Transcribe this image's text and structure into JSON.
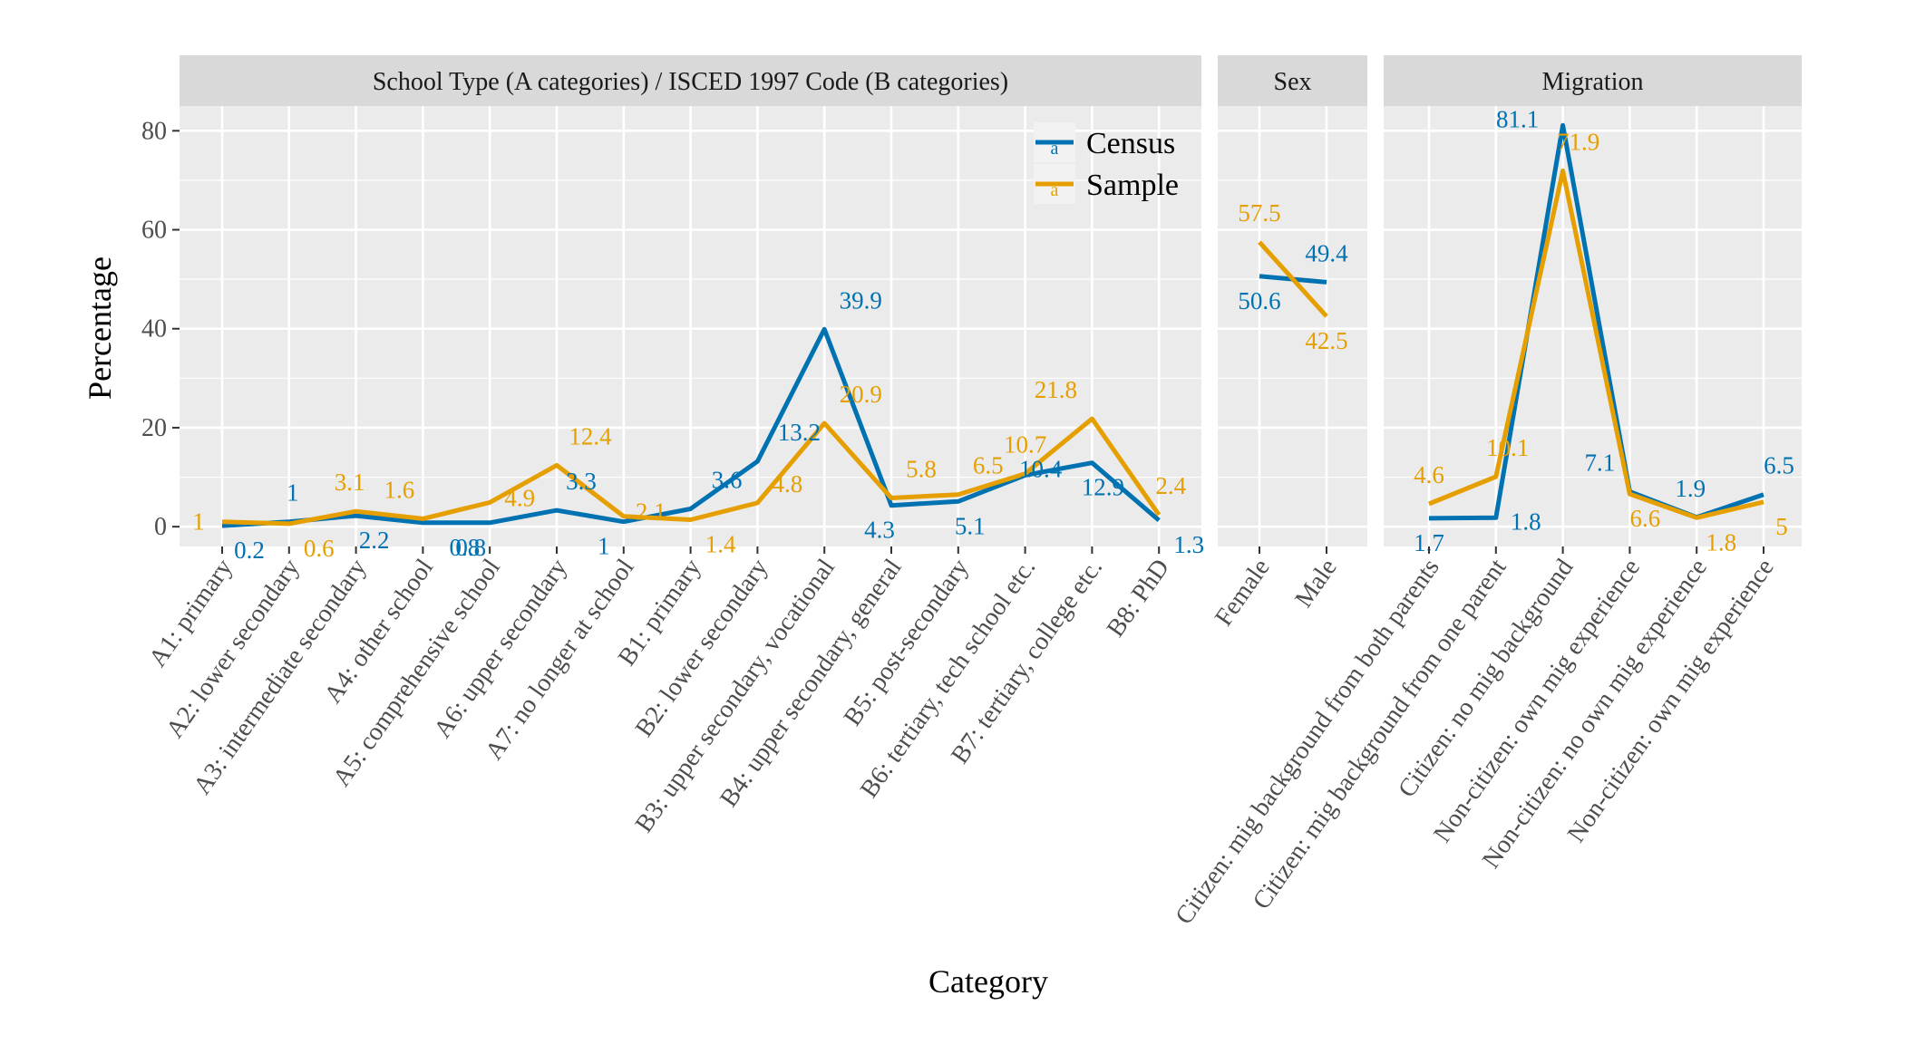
{
  "chart_data": {
    "type": "line",
    "xlabel": "Category",
    "ylabel": "Percentage",
    "ylim": [
      -4,
      85
    ],
    "yticks": [
      0,
      20,
      40,
      60,
      80
    ],
    "grid": true,
    "legend_position": "top-right",
    "colors": {
      "Census": "#0072B2",
      "Sample": "#E69F00"
    },
    "legend": [
      {
        "series": "Census",
        "label": "Census",
        "key_glyph": "a"
      },
      {
        "series": "Sample",
        "label": "Sample",
        "key_glyph": "a"
      }
    ],
    "panels": [
      {
        "id": "school",
        "strip": "School Type (A categories) / ISCED 1997 Code (B categories)",
        "categories": [
          "A1: primary",
          "A2: lower secondary",
          "A3: intermediate secondary",
          "A4: other school",
          "A5: comprehensive school",
          "A6: upper secondary",
          "A7: no longer at school",
          "B1: primary",
          "B2: lower secondary",
          "B3: upper secondary, vocational",
          "B4: upper secondary, general",
          "B5: post-secondary",
          "B6: tertiary, tech school etc.",
          "B7: tertiary, college etc.",
          "B8: PhD"
        ],
        "series": [
          {
            "name": "Census",
            "values": [
              0.2,
              1,
              2.2,
              0.8,
              0.8,
              3.3,
              1,
              3.6,
              13.2,
              39.9,
              4.3,
              5.1,
              10.4,
              12.9,
              1.3
            ]
          },
          {
            "name": "Sample",
            "values": [
              1,
              0.6,
              3.1,
              1.6,
              4.9,
              12.4,
              2.1,
              1.4,
              4.8,
              20.9,
              5.8,
              6.5,
              10.7,
              21.8,
              2.4
            ]
          }
        ]
      },
      {
        "id": "sex",
        "strip": "Sex",
        "categories": [
          "Female",
          "Male"
        ],
        "series": [
          {
            "name": "Census",
            "values": [
              50.6,
              49.4
            ]
          },
          {
            "name": "Sample",
            "values": [
              57.5,
              42.5
            ]
          }
        ]
      },
      {
        "id": "migration",
        "strip": "Migration",
        "categories": [
          "Citizen: mig background from both parents",
          "Citizen: mig background from one parent",
          "Citizen: no mig background",
          "Non-citizen: own mig experience",
          "Non-citizen: no own mig experience",
          "Non-citizen: own mig experience"
        ],
        "series": [
          {
            "name": "Census",
            "values": [
              1.7,
              1.8,
              81.1,
              7.1,
              1.9,
              6.5
            ]
          },
          {
            "name": "Sample",
            "values": [
              4.6,
              10.1,
              71.9,
              6.6,
              1.8,
              5
            ]
          }
        ]
      }
    ]
  }
}
